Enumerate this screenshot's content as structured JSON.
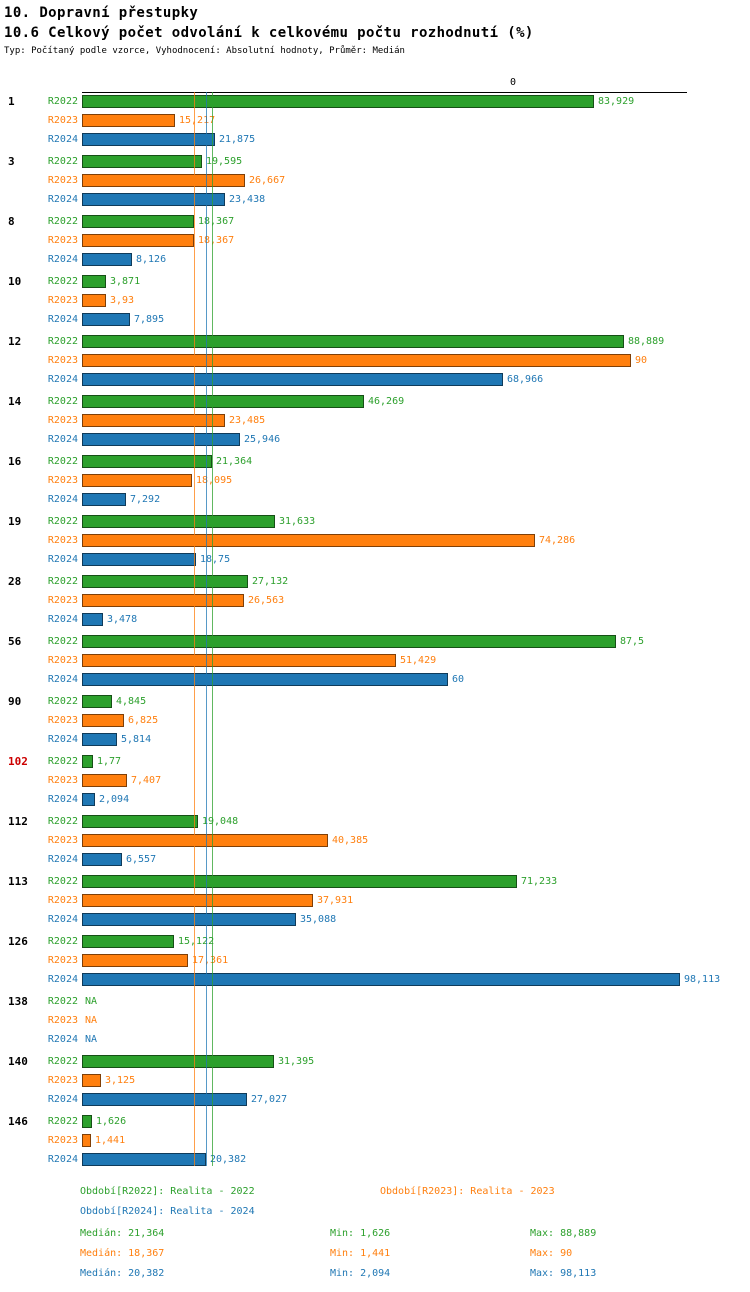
{
  "header": {
    "title": "10. Dopravní přestupky",
    "subtitle": "10.6 Celkový počet odvolání k celkovému počtu rozhodnutí (%)",
    "meta": "Typ: Počítaný podle vzorce, Vyhodnocení: Absolutní hodnoty, Průměr: Medián"
  },
  "axis": {
    "tick_label": "0"
  },
  "colors": {
    "r2022": "#2ca02c",
    "r2023": "#ff7f0e",
    "r2024": "#1f77b4",
    "highlight_category": "#cc0000"
  },
  "chart_data": {
    "type": "bar",
    "orientation": "horizontal",
    "title": "10.6 Celkový počet odvolání k celkovému počtu rozhodnutí (%)",
    "xlabel": "",
    "ylabel": "",
    "xlim": [
      0,
      100
    ],
    "grid": false,
    "legend_position": "bottom",
    "categories": [
      "1",
      "3",
      "8",
      "10",
      "12",
      "14",
      "16",
      "19",
      "28",
      "56",
      "90",
      "102",
      "112",
      "113",
      "126",
      "138",
      "140",
      "146"
    ],
    "highlighted_categories": [
      "102"
    ],
    "series": [
      {
        "name": "R2022",
        "color": "#2ca02c",
        "values": [
          83.929,
          19.595,
          18.367,
          3.871,
          88.889,
          46.269,
          21.364,
          31.633,
          27.132,
          87.5,
          4.845,
          1.77,
          19.048,
          71.233,
          15.122,
          null,
          31.395,
          1.626
        ],
        "labels": [
          "83,929",
          "19,595",
          "18,367",
          "3,871",
          "88,889",
          "46,269",
          "21,364",
          "31,633",
          "27,132",
          "87,5",
          "4,845",
          "1,77",
          "19,048",
          "71,233",
          "15,122",
          "NA",
          "31,395",
          "1,626"
        ]
      },
      {
        "name": "R2023",
        "color": "#ff7f0e",
        "values": [
          15.217,
          26.667,
          18.367,
          3.93,
          90,
          23.485,
          18.095,
          74.286,
          26.563,
          51.429,
          6.825,
          7.407,
          40.385,
          37.931,
          17.361,
          null,
          3.125,
          1.441
        ],
        "labels": [
          "15,217",
          "26,667",
          "18,367",
          "3,93",
          "90",
          "23,485",
          "18,095",
          "74,286",
          "26,563",
          "51,429",
          "6,825",
          "7,407",
          "40,385",
          "37,931",
          "17,361",
          "NA",
          "3,125",
          "1,441"
        ]
      },
      {
        "name": "R2024",
        "color": "#1f77b4",
        "values": [
          21.875,
          23.438,
          8.126,
          7.895,
          68.966,
          25.946,
          7.292,
          18.75,
          3.478,
          60,
          5.814,
          2.094,
          6.557,
          35.088,
          98.113,
          null,
          27.027,
          20.382
        ],
        "labels": [
          "21,875",
          "23,438",
          "8,126",
          "7,895",
          "68,966",
          "25,946",
          "7,292",
          "18,75",
          "3,478",
          "60",
          "5,814",
          "2,094",
          "6,557",
          "35,088",
          "98,113",
          "NA",
          "27,027",
          "20,382"
        ]
      }
    ],
    "median_lines": [
      {
        "series": "R2023",
        "value": 18.367,
        "color": "#ff7f0e"
      },
      {
        "series": "R2024",
        "value": 20.382,
        "color": "#1f77b4"
      },
      {
        "series": "R2022",
        "value": 21.364,
        "color": "#2ca02c"
      }
    ]
  },
  "legend": {
    "items": [
      {
        "label": "Období[R2022]: Realita - 2022",
        "color": "#2ca02c"
      },
      {
        "label": "Období[R2023]: Realita - 2023",
        "color": "#ff7f0e"
      },
      {
        "label": "Období[R2024]: Realita - 2024",
        "color": "#1f77b4"
      }
    ]
  },
  "stats": {
    "rows": [
      {
        "series": "R2022",
        "median": "Medián: 21,364",
        "min": "Min: 1,626",
        "max": "Max: 88,889",
        "color": "#2ca02c"
      },
      {
        "series": "R2023",
        "median": "Medián: 18,367",
        "min": "Min: 1,441",
        "max": "Max: 90",
        "color": "#ff7f0e"
      },
      {
        "series": "R2024",
        "median": "Medián: 20,382",
        "min": "Min: 2,094",
        "max": "Max: 98,113",
        "color": "#1f77b4"
      }
    ]
  }
}
